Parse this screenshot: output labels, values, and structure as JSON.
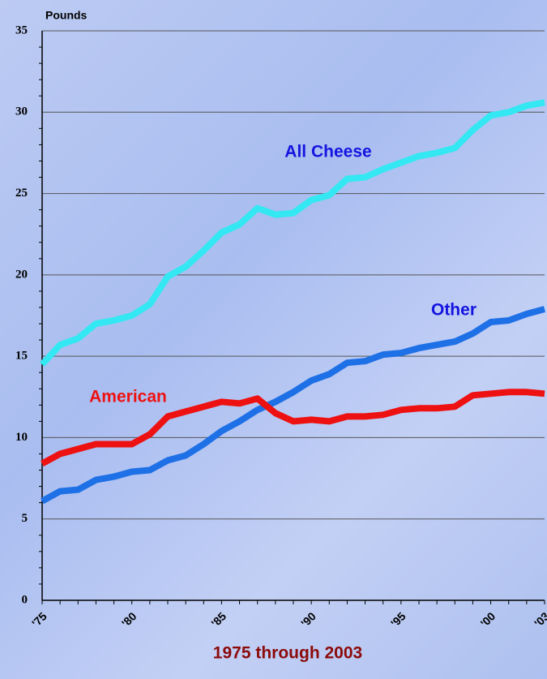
{
  "chart_data": {
    "type": "line",
    "y_label": "Pounds",
    "x_label": "1975 through 2003",
    "categories": [
      "'75",
      null,
      null,
      null,
      null,
      "'80",
      null,
      null,
      null,
      null,
      "'85",
      null,
      null,
      null,
      null,
      "'90",
      null,
      null,
      null,
      null,
      "'95",
      null,
      null,
      null,
      null,
      "'00",
      null,
      null,
      "'03"
    ],
    "series": [
      {
        "name": "All Cheese",
        "color": "#33e8f2",
        "label_color": "#1414e0",
        "values": [
          14.5,
          15.7,
          16.1,
          17.0,
          17.2,
          17.5,
          18.2,
          19.9,
          20.5,
          21.5,
          22.6,
          23.1,
          24.1,
          23.7,
          23.8,
          24.6,
          24.9,
          25.9,
          26.0,
          26.5,
          26.9,
          27.3,
          27.5,
          27.8,
          28.9,
          29.8,
          30.0,
          30.4,
          30.6
        ]
      },
      {
        "name": "Other",
        "color": "#1e70e6",
        "label_color": "#1414e0",
        "values": [
          6.1,
          6.7,
          6.8,
          7.4,
          7.6,
          7.9,
          8.0,
          8.6,
          8.9,
          9.6,
          10.4,
          11.0,
          11.7,
          12.2,
          12.8,
          13.5,
          13.9,
          14.6,
          14.7,
          15.1,
          15.2,
          15.5,
          15.7,
          15.9,
          16.4,
          17.1,
          17.2,
          17.6,
          17.9
        ]
      },
      {
        "name": "American",
        "color": "#ee1111",
        "label_color": "#ee1111",
        "values": [
          8.4,
          9.0,
          9.3,
          9.6,
          9.6,
          9.6,
          10.2,
          11.3,
          11.6,
          11.9,
          12.2,
          12.1,
          12.4,
          11.5,
          11.0,
          11.1,
          11.0,
          11.3,
          11.3,
          11.4,
          11.7,
          11.8,
          11.8,
          11.9,
          12.6,
          12.7,
          12.8,
          12.8,
          12.7
        ]
      }
    ],
    "ylim": [
      0,
      35
    ],
    "yticks": [
      0,
      5,
      10,
      15,
      20,
      25,
      30,
      35
    ],
    "grid": true
  }
}
